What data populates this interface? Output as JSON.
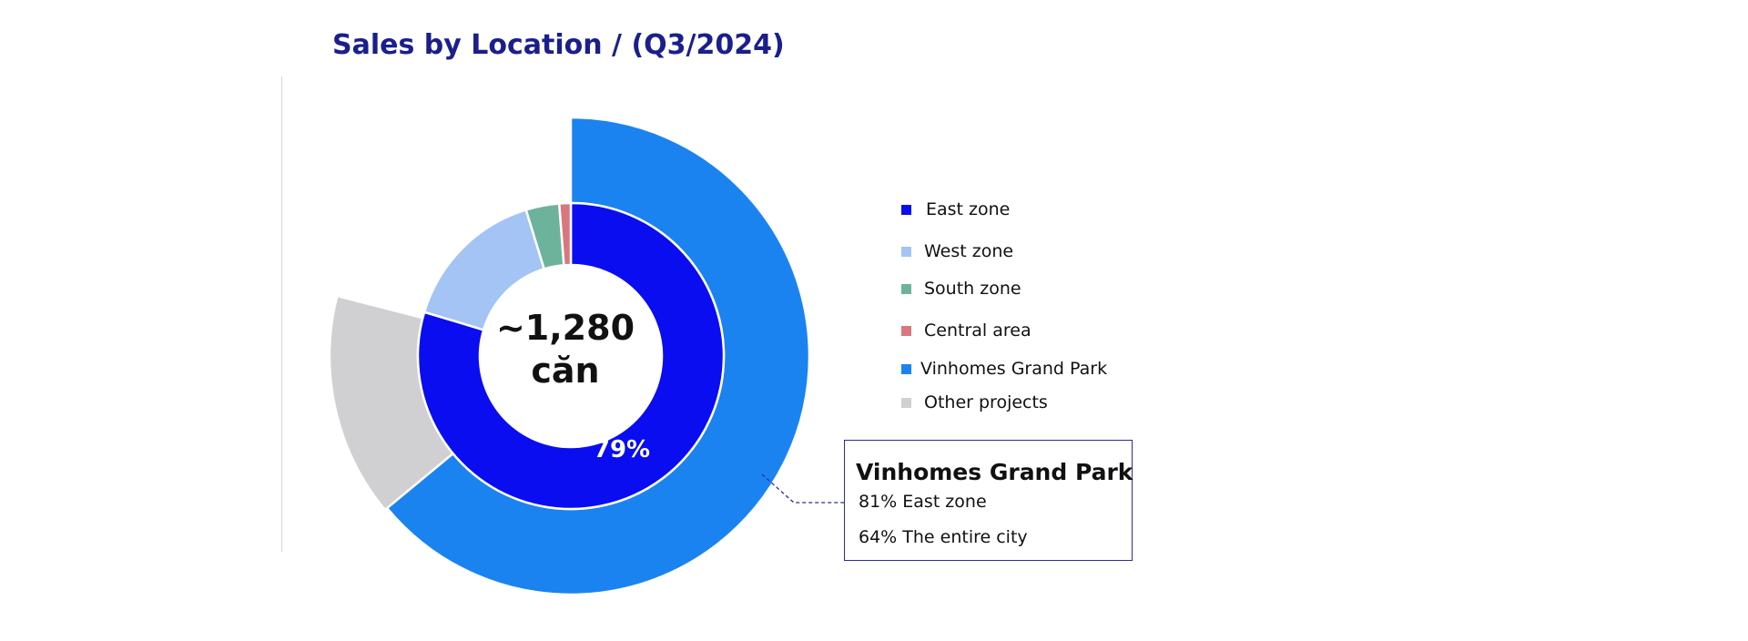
{
  "title": "Sales by Location / (Q3/2024)",
  "colors": {
    "title": "#1a1f8c",
    "east": "#0a0df0",
    "west": "#a3c4f4",
    "south": "#6db39c",
    "central": "#d9777f",
    "vhgp": "#1b83f0",
    "other": "#d0cfd1",
    "callout_border": "#2c2a9a"
  },
  "chart_data": {
    "type": "pie",
    "title": "Sales by Location / (Q3/2024)",
    "center_label": [
      "~1,280",
      "căn"
    ],
    "inner_ring": {
      "slices": [
        {
          "name": "East zone",
          "value": 79,
          "color": "#0a0df0",
          "label": "79%"
        },
        {
          "name": "West zone",
          "value": 15.5,
          "color": "#a3c4f4"
        },
        {
          "name": "South zone",
          "value": 3.5,
          "color": "#6db39c"
        },
        {
          "name": "Central area",
          "value": 1.2,
          "color": "#d9777f"
        }
      ]
    },
    "outer_ring": {
      "slices": [
        {
          "name": "Vinhomes Grand Park",
          "value": 64,
          "color": "#1b83f0"
        },
        {
          "name": "Other projects",
          "value": 15,
          "color": "#d0cfd1"
        }
      ]
    },
    "legend": [
      {
        "label": "East zone",
        "color": "#0a0df0"
      },
      {
        "label": "West zone",
        "color": "#a3c4f4"
      },
      {
        "label": "South zone",
        "color": "#6db39c"
      },
      {
        "label": "Central area",
        "color": "#d9777f"
      },
      {
        "label": "Vinhomes Grand Park",
        "color": "#1b83f0"
      },
      {
        "label": "Other projects",
        "color": "#d0cfd1"
      }
    ],
    "legend_position": "right"
  },
  "callout": {
    "title": "Vinhomes Grand Park",
    "line1": "81% East zone",
    "line2": "64% The entire city"
  }
}
